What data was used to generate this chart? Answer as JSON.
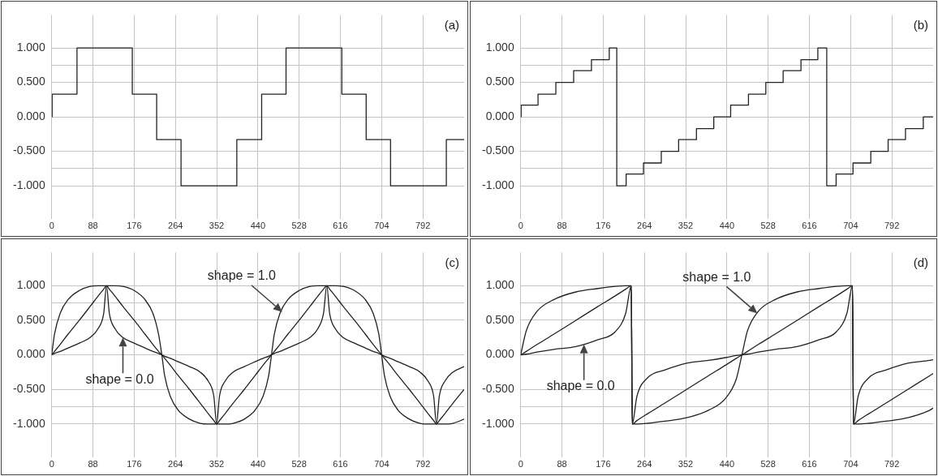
{
  "chart_data": [
    {
      "type": "step",
      "title": "(a)",
      "color": "#222222",
      "grid": true,
      "x": [
        0,
        1,
        54,
        172,
        224,
        276,
        395,
        448,
        500,
        619,
        671,
        723,
        842,
        880
      ],
      "values": [
        0,
        0.33,
        1,
        0.33,
        -0.33,
        -1,
        -0.33,
        0.33,
        1,
        0.33,
        -0.33,
        -1,
        -0.33,
        -0.33
      ],
      "xlim": [
        0,
        880
      ],
      "xticks": [
        0,
        88,
        176,
        264,
        352,
        440,
        528,
        616,
        704,
        792
      ],
      "ylim": [
        -1.48,
        1.48
      ],
      "yticks": [
        {
          "value": -1,
          "label": "-1.000"
        },
        {
          "value": -0.75,
          "label": null
        },
        {
          "value": -0.5,
          "label": "-0.500"
        },
        {
          "value": 0,
          "label": "0.000"
        },
        {
          "value": 0.5,
          "label": "0.500"
        },
        {
          "value": 0.75,
          "label": null
        },
        {
          "value": 1,
          "label": "1.000"
        }
      ]
    },
    {
      "type": "step",
      "title": "(b)",
      "color": "#222222",
      "grid": true,
      "x": [
        0,
        1,
        37,
        75,
        113,
        151,
        189,
        205,
        225,
        262,
        300,
        337,
        375,
        412,
        448,
        486,
        523,
        560,
        598,
        634,
        653,
        673,
        709,
        747,
        784,
        821,
        859,
        880
      ],
      "values": [
        0,
        0.17,
        0.33,
        0.5,
        0.67,
        0.83,
        1,
        -1,
        -0.83,
        -0.67,
        -0.5,
        -0.33,
        -0.17,
        0,
        0.17,
        0.33,
        0.5,
        0.67,
        0.83,
        1,
        -1,
        -0.83,
        -0.67,
        -0.5,
        -0.33,
        -0.17,
        0,
        0
      ],
      "xlim": [
        0,
        880
      ],
      "xticks": [
        0,
        88,
        176,
        264,
        352,
        440,
        528,
        616,
        704,
        792
      ],
      "ylim": [
        -1.48,
        1.48
      ],
      "yticks": [
        {
          "value": -1,
          "label": "-1.000"
        },
        {
          "value": -0.75,
          "label": null
        },
        {
          "value": -0.5,
          "label": "-0.500"
        },
        {
          "value": 0,
          "label": "0.000"
        },
        {
          "value": 0.5,
          "label": "0.500"
        },
        {
          "value": 0.75,
          "label": null
        },
        {
          "value": 1,
          "label": "1.000"
        }
      ]
    },
    {
      "type": "line",
      "title": "(c)",
      "grid": true,
      "x": [
        0,
        6,
        18,
        35,
        59,
        82,
        99,
        111,
        117,
        123,
        135,
        152,
        176,
        199,
        216,
        228,
        235,
        241,
        253,
        270,
        294,
        317,
        334,
        346,
        352,
        358,
        370,
        387,
        411,
        434,
        451,
        463,
        469,
        475,
        487,
        504,
        528,
        551,
        568,
        580,
        587,
        593,
        605,
        622,
        646,
        669,
        686,
        698,
        704,
        710,
        722,
        739,
        763,
        786,
        803,
        815,
        821,
        827,
        839,
        856,
        880
      ],
      "series": [
        {
          "color": "#222222",
          "values": [
            0,
            0.3,
            0.6,
            0.8,
            0.93,
            0.99,
            1,
            1,
            1,
            1,
            1,
            0.99,
            0.93,
            0.8,
            0.6,
            0.3,
            0,
            -0.3,
            -0.6,
            -0.8,
            -0.93,
            -0.99,
            -1,
            -1,
            -1,
            -1,
            -1,
            -0.99,
            -0.93,
            -0.8,
            -0.6,
            -0.3,
            0,
            0.3,
            0.6,
            0.8,
            0.93,
            0.99,
            1,
            1,
            1,
            1,
            1,
            0.99,
            0.93,
            0.8,
            0.6,
            0.3,
            0,
            -0.3,
            -0.6,
            -0.8,
            -0.93,
            -0.99,
            -1,
            -1,
            -1,
            -1,
            -1,
            -0.99,
            -0.93
          ]
        },
        {
          "color": "#222222",
          "values": [
            0,
            0.05,
            0.15,
            0.3,
            0.5,
            0.7,
            0.85,
            0.95,
            1,
            0.95,
            0.85,
            0.7,
            0.5,
            0.3,
            0.15,
            0.05,
            0,
            -0.05,
            -0.15,
            -0.3,
            -0.5,
            -0.7,
            -0.85,
            -0.95,
            -1,
            -0.95,
            -0.85,
            -0.7,
            -0.5,
            -0.3,
            -0.15,
            -0.05,
            0,
            0.05,
            0.15,
            0.3,
            0.5,
            0.7,
            0.85,
            0.95,
            1,
            0.95,
            0.85,
            0.7,
            0.5,
            0.3,
            0.15,
            0.05,
            0,
            -0.05,
            -0.15,
            -0.3,
            -0.5,
            -0.7,
            -0.85,
            -0.95,
            -1,
            -0.95,
            -0.85,
            -0.7,
            -0.5
          ]
        },
        {
          "color": "#222222",
          "values": [
            0,
            0.02,
            0.05,
            0.1,
            0.17,
            0.25,
            0.38,
            0.6,
            1,
            0.6,
            0.38,
            0.25,
            0.17,
            0.1,
            0.05,
            0.02,
            0,
            -0.02,
            -0.05,
            -0.1,
            -0.17,
            -0.25,
            -0.38,
            -0.6,
            -1,
            -0.6,
            -0.38,
            -0.25,
            -0.17,
            -0.1,
            -0.05,
            -0.02,
            0,
            0.02,
            0.05,
            0.1,
            0.17,
            0.25,
            0.38,
            0.6,
            1,
            0.6,
            0.38,
            0.25,
            0.17,
            0.1,
            0.05,
            0.02,
            0,
            -0.02,
            -0.05,
            -0.1,
            -0.17,
            -0.25,
            -0.38,
            -0.6,
            -1,
            -0.6,
            -0.38,
            -0.25,
            -0.17
          ]
        }
      ],
      "annotations": [
        {
          "text": "shape = 1.0",
          "x": 492,
          "y": 0.62
        },
        {
          "text": "shape = 0.0",
          "x": 152,
          "y": 0.25
        }
      ],
      "xlim": [
        0,
        880
      ],
      "xticks": [
        0,
        88,
        176,
        264,
        352,
        440,
        528,
        616,
        704,
        792
      ],
      "ylim": [
        -1.48,
        1.48
      ],
      "yticks": [
        {
          "value": -1,
          "label": "-1.000"
        },
        {
          "value": -0.75,
          "label": null
        },
        {
          "value": -0.5,
          "label": "-0.500"
        },
        {
          "value": 0,
          "label": "0.000"
        },
        {
          "value": 0.5,
          "label": "0.500"
        },
        {
          "value": 0.75,
          "label": null
        },
        {
          "value": 1,
          "label": "1.000"
        }
      ]
    },
    {
      "type": "line",
      "title": "(d)",
      "grid": true,
      "x": [
        0,
        12,
        35,
        71,
        118,
        165,
        201,
        224,
        236,
        238,
        248,
        271,
        307,
        354,
        401,
        437,
        460,
        472,
        484,
        507,
        543,
        590,
        637,
        673,
        696,
        708,
        710,
        720,
        743,
        779,
        826,
        873,
        880
      ],
      "series": [
        {
          "color": "#222222",
          "values": [
            0,
            0.35,
            0.63,
            0.8,
            0.91,
            0.96,
            0.99,
            1,
            1,
            -1,
            -1,
            -0.99,
            -0.96,
            -0.91,
            -0.8,
            -0.63,
            -0.35,
            0,
            0.35,
            0.63,
            0.8,
            0.91,
            0.96,
            0.99,
            1,
            1,
            -1,
            -1,
            -0.99,
            -0.96,
            -0.91,
            -0.8,
            -0.77
          ]
        },
        {
          "color": "#222222",
          "values": [
            0,
            0.05,
            0.15,
            0.3,
            0.5,
            0.7,
            0.85,
            0.95,
            1,
            -1,
            -0.95,
            -0.85,
            -0.7,
            -0.5,
            -0.3,
            -0.15,
            -0.05,
            0,
            0.05,
            0.15,
            0.3,
            0.5,
            0.7,
            0.85,
            0.95,
            1,
            -1,
            -0.95,
            -0.85,
            -0.7,
            -0.5,
            -0.3,
            -0.27
          ]
        },
        {
          "color": "#222222",
          "values": [
            0,
            0.01,
            0.04,
            0.08,
            0.12,
            0.22,
            0.33,
            0.6,
            1,
            -1,
            -0.6,
            -0.33,
            -0.22,
            -0.12,
            -0.08,
            -0.04,
            -0.01,
            0,
            0.01,
            0.04,
            0.08,
            0.12,
            0.22,
            0.33,
            0.6,
            1,
            -1,
            -0.6,
            -0.33,
            -0.22,
            -0.12,
            -0.08,
            -0.07
          ]
        }
      ],
      "annotations": [
        {
          "text": "shape = 1.0",
          "x": 505,
          "y": 0.6
        },
        {
          "text": "shape = 0.0",
          "x": 135,
          "y": 0.15
        }
      ],
      "xlim": [
        0,
        880
      ],
      "xticks": [
        0,
        88,
        176,
        264,
        352,
        440,
        528,
        616,
        704,
        792
      ],
      "ylim": [
        -1.48,
        1.48
      ],
      "yticks": [
        {
          "value": -1,
          "label": "-1.000"
        },
        {
          "value": -0.75,
          "label": null
        },
        {
          "value": -0.5,
          "label": "-0.500"
        },
        {
          "value": 0,
          "label": "0.000"
        },
        {
          "value": 0.5,
          "label": "0.500"
        },
        {
          "value": 0.75,
          "label": null
        },
        {
          "value": 1,
          "label": "1.000"
        }
      ]
    }
  ]
}
